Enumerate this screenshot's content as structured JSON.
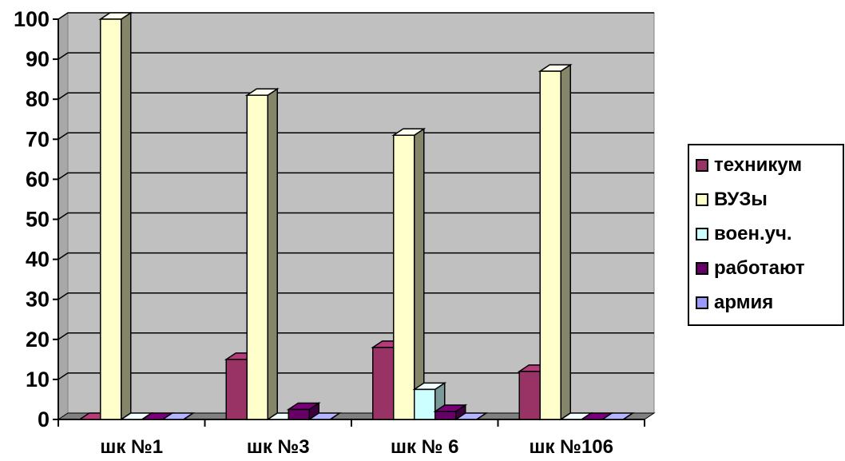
{
  "chart_data": {
    "type": "bar",
    "title": "",
    "xlabel": "",
    "ylabel": "",
    "ylim": [
      0,
      100
    ],
    "yticks": [
      0,
      10,
      20,
      30,
      40,
      50,
      60,
      70,
      80,
      90,
      100
    ],
    "categories": [
      "шк №1",
      "шк №3",
      "шк № 6",
      "шк №106"
    ],
    "series": [
      {
        "name": "техникум",
        "color": "#993366",
        "values": [
          0,
          15,
          18,
          12
        ]
      },
      {
        "name": "ВУЗы",
        "color": "#ffffcc",
        "values": [
          100,
          81,
          71,
          87
        ]
      },
      {
        "name": "воен.уч.",
        "color": "#ccffff",
        "values": [
          0,
          0,
          7.5,
          0
        ]
      },
      {
        "name": "работают",
        "color": "#660066",
        "values": [
          0,
          2.5,
          2,
          0
        ]
      },
      {
        "name": "армия",
        "color": "#9999ff",
        "values": [
          0,
          0,
          0,
          0
        ]
      }
    ],
    "grid": true,
    "legend_position": "right",
    "plot_background": "#c0c0c0",
    "style": "3d"
  }
}
